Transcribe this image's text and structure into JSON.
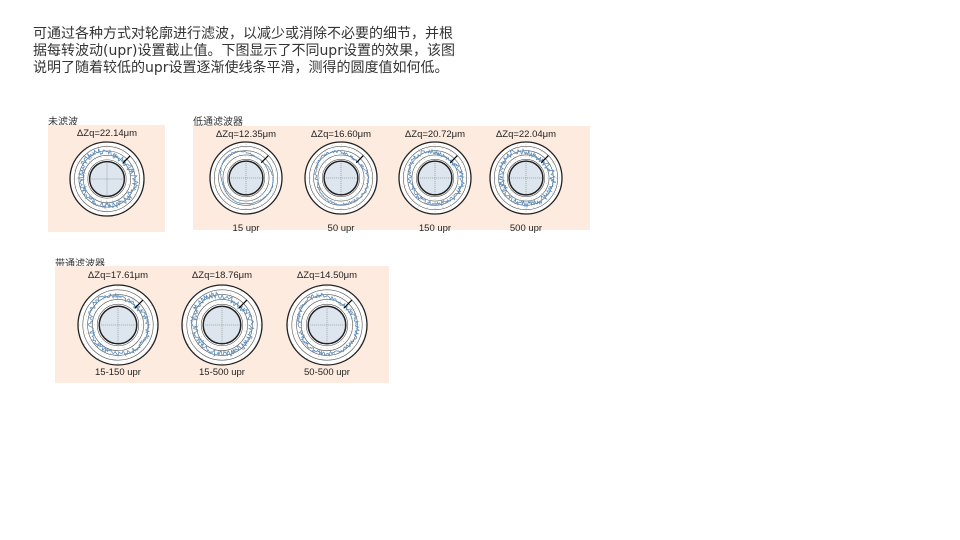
{
  "intro": [
    "可通过各种方式对轮廓进行滤波，以减少或消除不必要的细节，并根",
    "据每转波动(upr)设置截止值。下图显示了不同upr设置的效果，该图",
    "说明了随着较低的upr设置逐渐使线条平滑，测得的圆度值如何低。"
  ],
  "groups": [
    {
      "label": "未滤波",
      "items": [
        {
          "zq": "ΔZq=22.14μm",
          "upr": "",
          "noise": 1.0
        }
      ]
    },
    {
      "label": "低通滤波器",
      "items": [
        {
          "zq": "ΔZq=12.35μm",
          "upr": "15 upr",
          "noise": 0.15
        },
        {
          "zq": "ΔZq=16.60μm",
          "upr": "50 upr",
          "noise": 0.4
        },
        {
          "zq": "ΔZq=20.72μm",
          "upr": "150 upr",
          "noise": 0.7
        },
        {
          "zq": "ΔZq=22.04μm",
          "upr": "500 upr",
          "noise": 0.95
        }
      ]
    },
    {
      "label": "带通滤波器",
      "items": [
        {
          "zq": "ΔZq=17.61μm",
          "upr": "15-150 upr",
          "noise": 0.7
        },
        {
          "zq": "ΔZq=18.76μm",
          "upr": "15-500 upr",
          "noise": 0.9
        },
        {
          "zq": "ΔZq=14.50μm",
          "upr": "50-500 upr",
          "noise": 0.6
        }
      ]
    }
  ],
  "colors": {
    "panel": "#fdebdf",
    "trace": "#5b8fbf",
    "inner": "#dde6ee"
  }
}
